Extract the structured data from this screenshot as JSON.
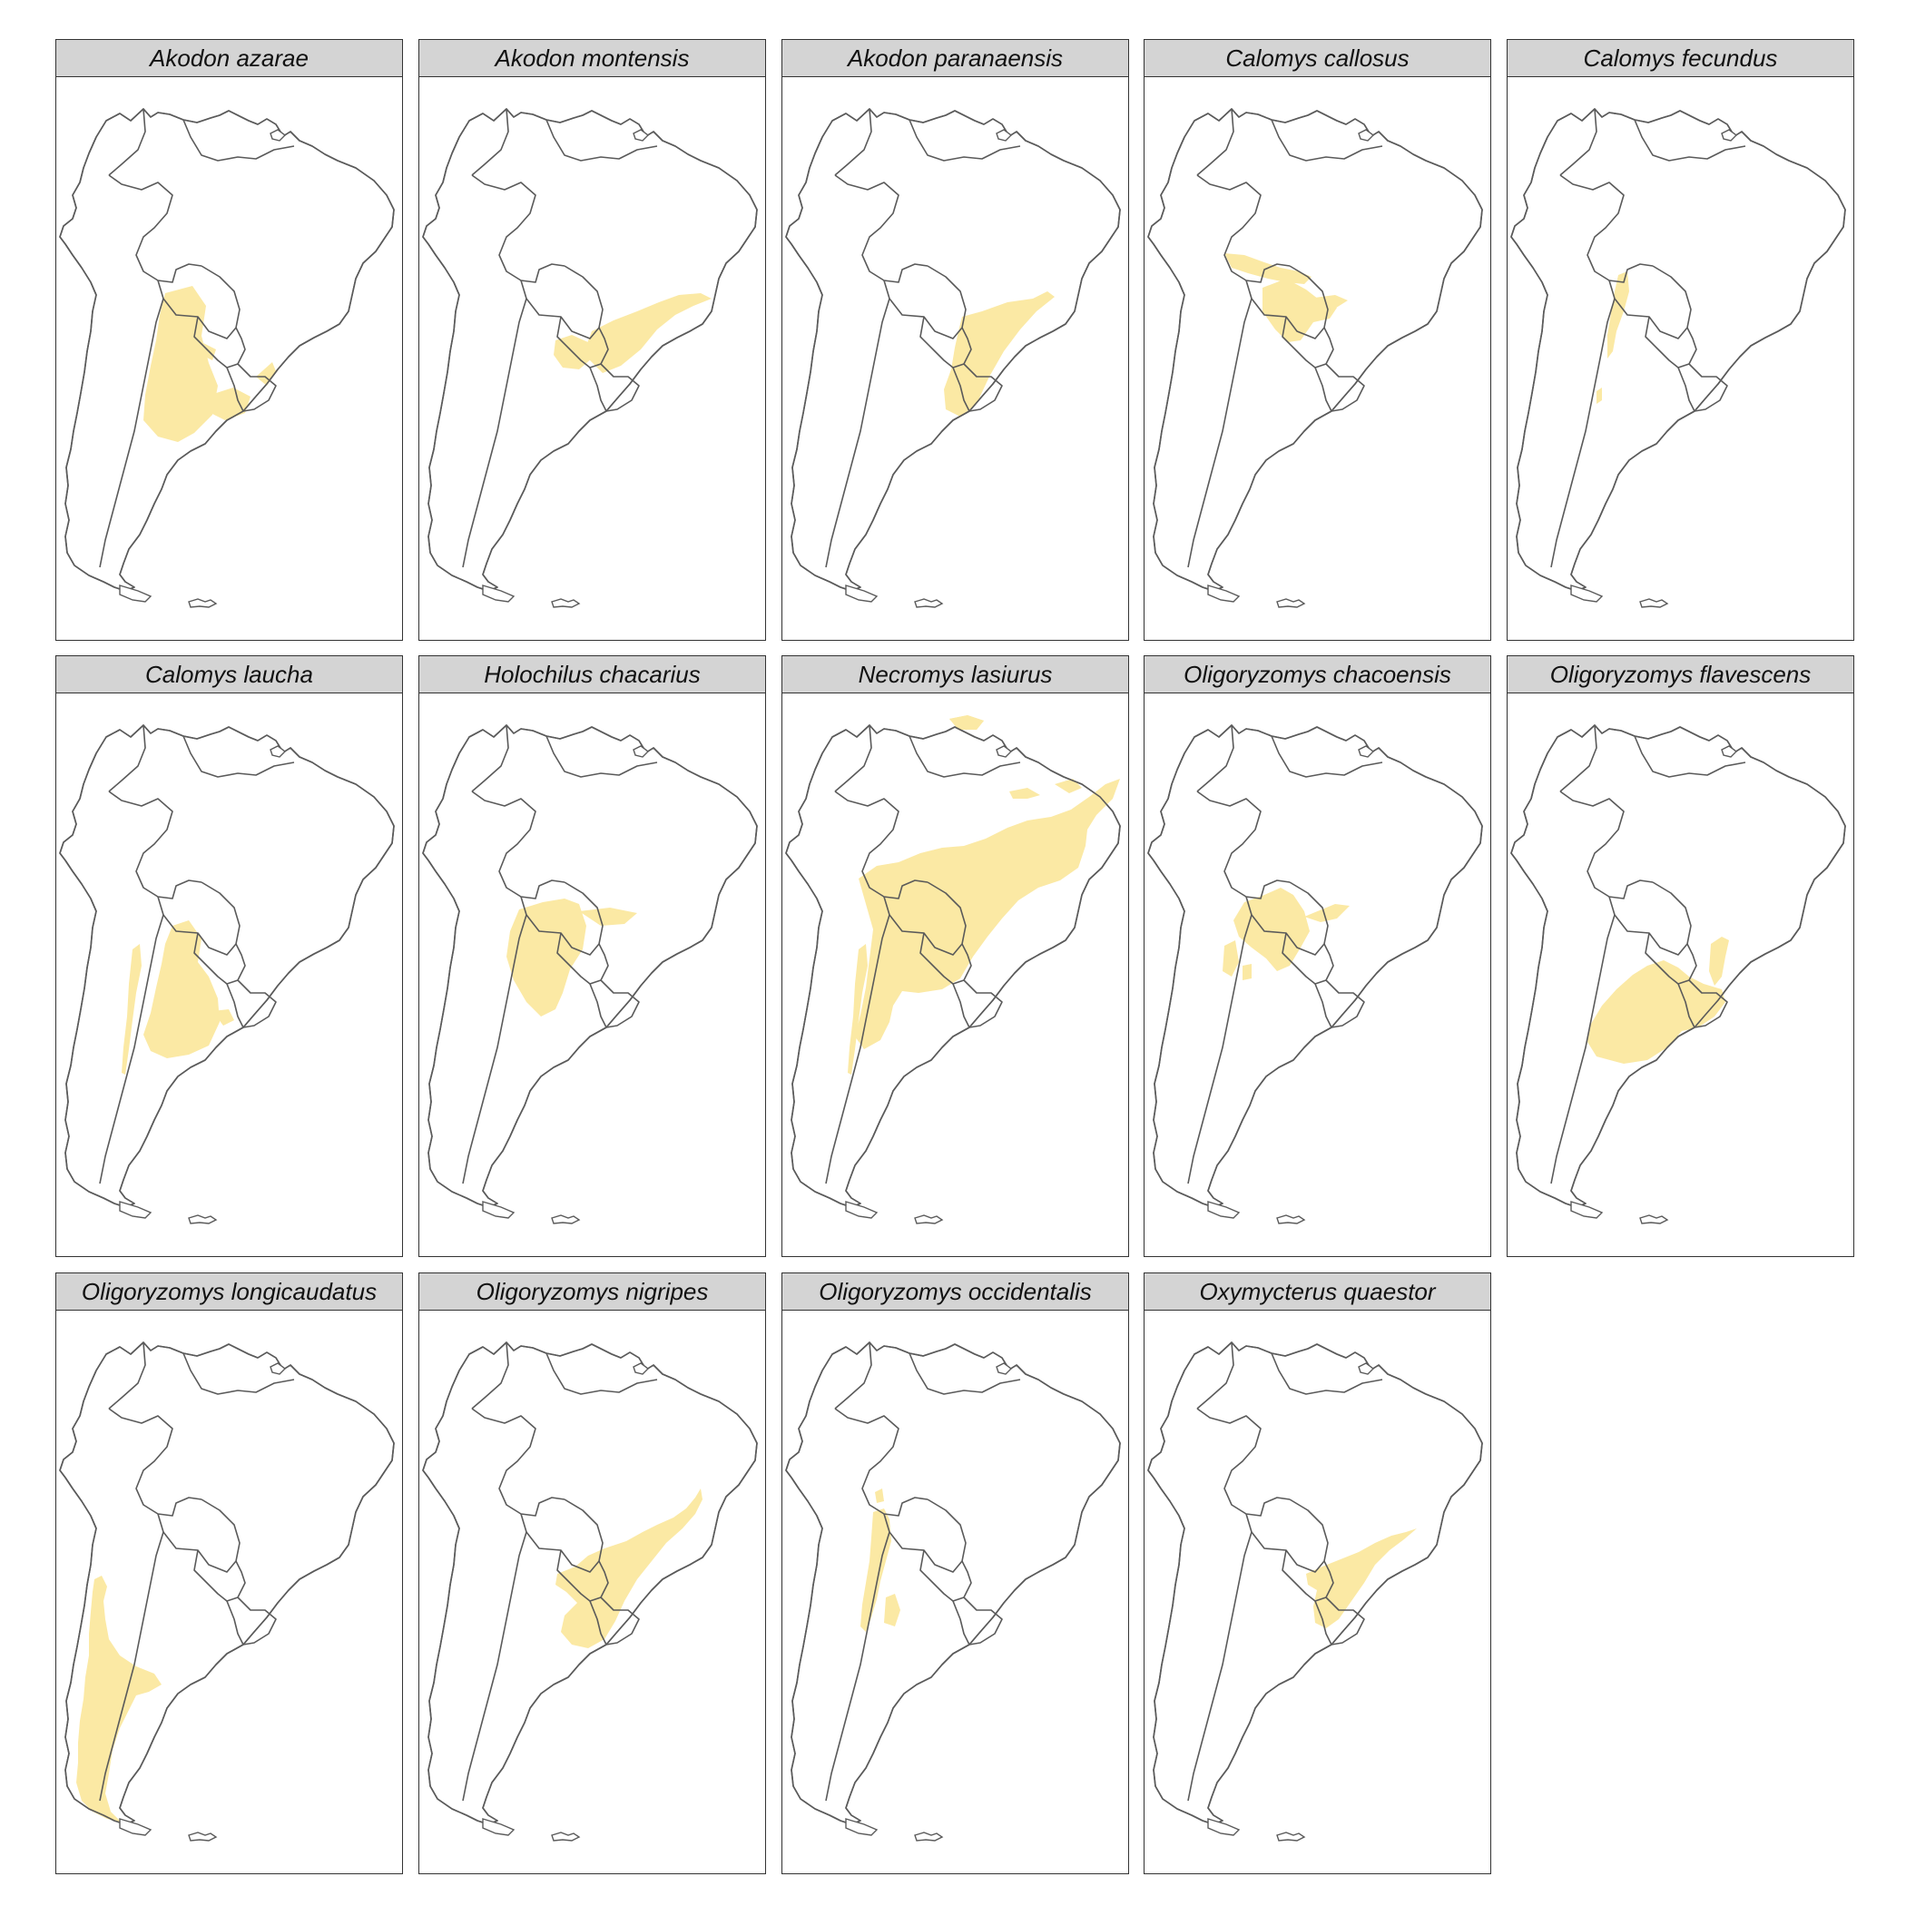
{
  "figure": {
    "range_color": "#fbe9a4",
    "outline_color": "#5a5a5a",
    "strip_color": "#d4d4d4",
    "map_region": "South America"
  },
  "panels": [
    {
      "title": "Akodon azarae",
      "ranges": [
        "paraguay-argentina-plains",
        "uruguay-rio-grande",
        "southern-paraguay"
      ]
    },
    {
      "title": "Akodon montensis",
      "ranges": [
        "southeast-brazil-atlantic",
        "paraguay-misiones"
      ]
    },
    {
      "title": "Akodon paranaensis",
      "ranges": [
        "southern-brazil-highlands"
      ]
    },
    {
      "title": "Calomys callosus",
      "ranges": [
        "bolivia-lowlands",
        "paraguay-chaco-north"
      ]
    },
    {
      "title": "Calomys fecundus",
      "ranges": [
        "andean-foothills-bolivia-argentina"
      ]
    },
    {
      "title": "Calomys laucha",
      "ranges": [
        "chaco-pampas",
        "western-argentina-strip"
      ]
    },
    {
      "title": "Holochilus chacarius",
      "ranges": [
        "chaco-paraguay-argentina"
      ]
    },
    {
      "title": "Necromys lasiurus",
      "ranges": [
        "cerrado-caatinga-pampas",
        "guiana-savanna",
        "western-argentina-strip"
      ]
    },
    {
      "title": "Oligoryzomys chacoensis",
      "ranges": [
        "bolivia-paraguay-chaco",
        "western-argentina-patches"
      ]
    },
    {
      "title": "Oligoryzomys flavescens",
      "ranges": [
        "pampas-uruguay",
        "southern-brazil-coast"
      ]
    },
    {
      "title": "Oligoryzomys longicaudatus",
      "ranges": [
        "chile-patagonia"
      ]
    },
    {
      "title": "Oligoryzomys nigripes",
      "ranges": [
        "atlantic-forest-paraguay-uruguay"
      ]
    },
    {
      "title": "Oligoryzomys occidentalis",
      "ranges": [
        "andean-yungas-bolivia-argentina"
      ]
    },
    {
      "title": "Oxymycterus quaestor",
      "ranges": [
        "southern-brazil-atlantic-forest"
      ]
    }
  ]
}
